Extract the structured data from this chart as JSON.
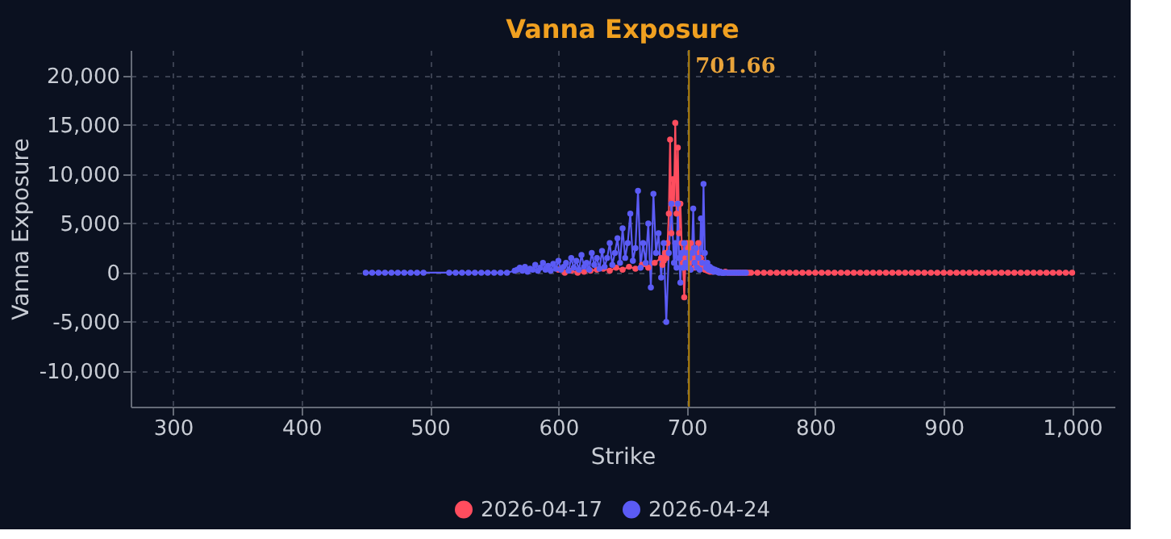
{
  "chart_data": {
    "type": "line",
    "title": "Vanna Exposure",
    "xlabel": "Strike",
    "ylabel": "Vanna Exposure",
    "xlim": [
      267,
      1033
    ],
    "xticks": [
      {
        "value": 300,
        "label": "300"
      },
      {
        "value": 400,
        "label": "400"
      },
      {
        "value": 500,
        "label": "500"
      },
      {
        "value": 600,
        "label": "600"
      },
      {
        "value": 700,
        "label": "700"
      },
      {
        "value": 800,
        "label": "800"
      },
      {
        "value": 900,
        "label": "900"
      },
      {
        "value": 1000,
        "label": "1,000"
      }
    ],
    "ylim": [
      -13600,
      22600
    ],
    "yticks": [
      {
        "value": -10000,
        "label": "-10,000"
      },
      {
        "value": -5000,
        "label": "-5,000"
      },
      {
        "value": 0,
        "label": "0"
      },
      {
        "value": 5000,
        "label": "5,000"
      },
      {
        "value": 10000,
        "label": "10,000"
      },
      {
        "value": 15000,
        "label": "15,000"
      },
      {
        "value": 20000,
        "label": "20,000"
      }
    ],
    "grid": true,
    "legend": "bottom",
    "marker": "circle",
    "line_style": "solid",
    "ref_lines": [
      {
        "axis": "x",
        "value": 701.66,
        "label": "701.66",
        "color": "#b8860b"
      }
    ],
    "series": [
      {
        "name": "2026-04-17",
        "color": "#ff4d5e",
        "x": [
          600,
          605,
          610,
          615,
          620,
          625,
          630,
          635,
          640,
          645,
          650,
          655,
          660,
          665,
          670,
          675,
          680,
          681,
          682,
          683,
          684,
          685,
          686,
          687,
          688,
          689,
          690,
          691,
          692,
          693,
          694,
          695,
          696,
          697,
          698,
          699,
          700,
          701,
          702,
          703,
          704,
          705,
          706,
          707,
          708,
          709,
          710,
          711,
          712,
          713,
          714,
          715,
          716,
          717,
          718,
          719,
          720,
          722,
          724,
          726,
          728,
          730,
          732,
          734,
          736,
          738,
          740,
          742,
          744,
          746,
          748,
          750,
          755,
          760,
          765,
          770,
          775,
          780,
          785,
          790,
          795,
          800,
          805,
          810,
          815,
          820,
          825,
          830,
          835,
          840,
          845,
          850,
          855,
          860,
          865,
          870,
          875,
          880,
          885,
          890,
          895,
          900,
          905,
          910,
          915,
          920,
          925,
          930,
          935,
          940,
          945,
          950,
          955,
          960,
          965,
          970,
          975,
          980,
          985,
          990,
          995,
          1000
        ],
        "values": [
          300,
          0,
          200,
          0,
          100,
          200,
          300,
          400,
          200,
          500,
          300,
          600,
          400,
          800,
          500,
          1000,
          1500,
          800,
          1200,
          2000,
          1500,
          3000,
          6000,
          13500,
          4000,
          9500,
          7000,
          15200,
          6000,
          12700,
          4000,
          7000,
          3000,
          1000,
          -2500,
          1500,
          3000,
          2500,
          1000,
          3000,
          2000,
          1500,
          500,
          2500,
          1000,
          3000,
          800,
          1500,
          500,
          1000,
          300,
          600,
          200,
          400,
          100,
          300,
          100,
          200,
          100,
          100,
          0,
          100,
          0,
          0,
          0,
          0,
          0,
          0,
          0,
          0,
          0,
          0,
          0,
          0,
          0,
          0,
          0,
          0,
          0,
          0,
          0,
          0,
          0,
          0,
          0,
          0,
          0,
          0,
          0,
          0,
          0,
          0,
          0,
          0,
          0,
          0,
          0,
          0,
          0,
          0,
          0,
          0,
          0,
          0,
          0,
          0,
          0,
          0,
          0,
          0,
          0,
          0,
          0,
          0,
          0,
          0,
          0,
          0,
          0,
          0,
          0,
          0
        ]
      },
      {
        "name": "2026-04-24",
        "color": "#5b5bf5",
        "x": [
          450,
          455,
          460,
          465,
          470,
          475,
          480,
          485,
          490,
          495,
          515,
          520,
          525,
          530,
          535,
          540,
          545,
          550,
          555,
          560,
          566,
          568,
          570,
          572,
          574,
          576,
          578,
          580,
          582,
          584,
          586,
          588,
          590,
          592,
          594,
          596,
          598,
          600,
          602,
          604,
          606,
          608,
          610,
          612,
          614,
          616,
          618,
          620,
          622,
          624,
          626,
          628,
          630,
          632,
          634,
          636,
          638,
          640,
          642,
          644,
          646,
          648,
          650,
          652,
          654,
          656,
          658,
          660,
          662,
          664,
          666,
          668,
          670,
          672,
          674,
          676,
          678,
          680,
          682,
          684,
          686,
          688,
          690,
          691,
          692,
          693,
          694,
          695,
          696,
          697,
          698,
          699,
          700,
          701,
          702,
          703,
          704,
          705,
          706,
          707,
          708,
          709,
          710,
          711,
          712,
          713,
          714,
          715,
          716,
          717,
          718,
          719,
          720,
          721,
          722,
          723,
          724,
          725,
          726,
          727,
          728,
          729,
          730,
          732,
          734,
          736,
          738,
          740,
          742,
          744,
          746
        ],
        "values": [
          0,
          0,
          0,
          0,
          0,
          0,
          0,
          0,
          0,
          0,
          0,
          0,
          0,
          0,
          0,
          0,
          0,
          0,
          0,
          0,
          200,
          300,
          500,
          200,
          600,
          100,
          400,
          300,
          800,
          200,
          500,
          1000,
          300,
          700,
          200,
          900,
          400,
          1200,
          300,
          600,
          1000,
          200,
          1500,
          500,
          1200,
          300,
          1800,
          600,
          1000,
          300,
          2000,
          800,
          1500,
          400,
          2200,
          600,
          1500,
          3000,
          800,
          2000,
          3500,
          1000,
          4500,
          1500,
          3000,
          6000,
          1200,
          2500,
          8300,
          500,
          3000,
          1000,
          5000,
          -1500,
          8000,
          2000,
          4000,
          -500,
          3000,
          -5000,
          2000,
          7000,
          1000,
          3000,
          500,
          7000,
          1500,
          -1000,
          2000,
          500,
          3000,
          1000,
          2000,
          500,
          1500,
          300,
          2000,
          6500,
          1000,
          2500,
          500,
          1500,
          300,
          5500,
          1000,
          9000,
          2000,
          500,
          1000,
          300,
          600,
          200,
          400,
          100,
          300,
          100,
          200,
          0,
          100,
          0,
          0,
          0,
          0,
          0,
          0,
          0,
          0,
          0,
          0,
          0,
          0
        ]
      }
    ]
  }
}
